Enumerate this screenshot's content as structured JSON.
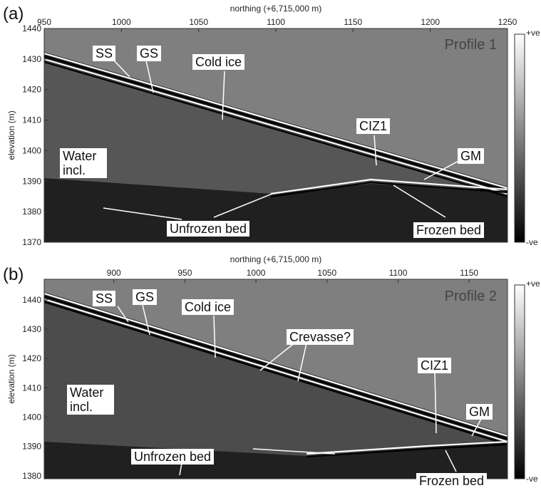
{
  "chart_data": [
    {
      "type": "radargram",
      "panel_label": "(a)",
      "profile": "Profile 1",
      "xlabel": "northing (+6,715,000 m)",
      "ylabel": "elevation (m)",
      "xlim": [
        950,
        1250
      ],
      "xticks": [
        950,
        1000,
        1050,
        1100,
        1150,
        1200,
        1250
      ],
      "ylim": [
        1370,
        1440
      ],
      "yticks": [
        1370,
        1380,
        1390,
        1400,
        1410,
        1420,
        1430,
        1440
      ],
      "colorbar": [
        "+ve",
        "-ve"
      ],
      "annotations": [
        "SS",
        "GS",
        "Cold ice",
        "CIZ1",
        "GM",
        "Water incl.",
        "Unfrozen bed",
        "Frozen bed"
      ]
    },
    {
      "type": "radargram",
      "panel_label": "(b)",
      "profile": "Profile 2",
      "xlabel": "northing (+6,715,000 m)",
      "ylabel": "elevation (m)",
      "xlim": [
        851,
        1177
      ],
      "xticks": [
        900,
        950,
        1000,
        1050,
        1100,
        1150
      ],
      "ylim": [
        1379,
        1447
      ],
      "yticks": [
        1380,
        1390,
        1400,
        1410,
        1420,
        1430,
        1440
      ],
      "colorbar": [
        "+ve",
        "-ve"
      ],
      "annotations": [
        "SS",
        "GS",
        "Cold ice",
        "Crevasse?",
        "CIZ1",
        "GM",
        "Water incl.",
        "Unfrozen bed",
        "Frozen bed"
      ]
    }
  ]
}
